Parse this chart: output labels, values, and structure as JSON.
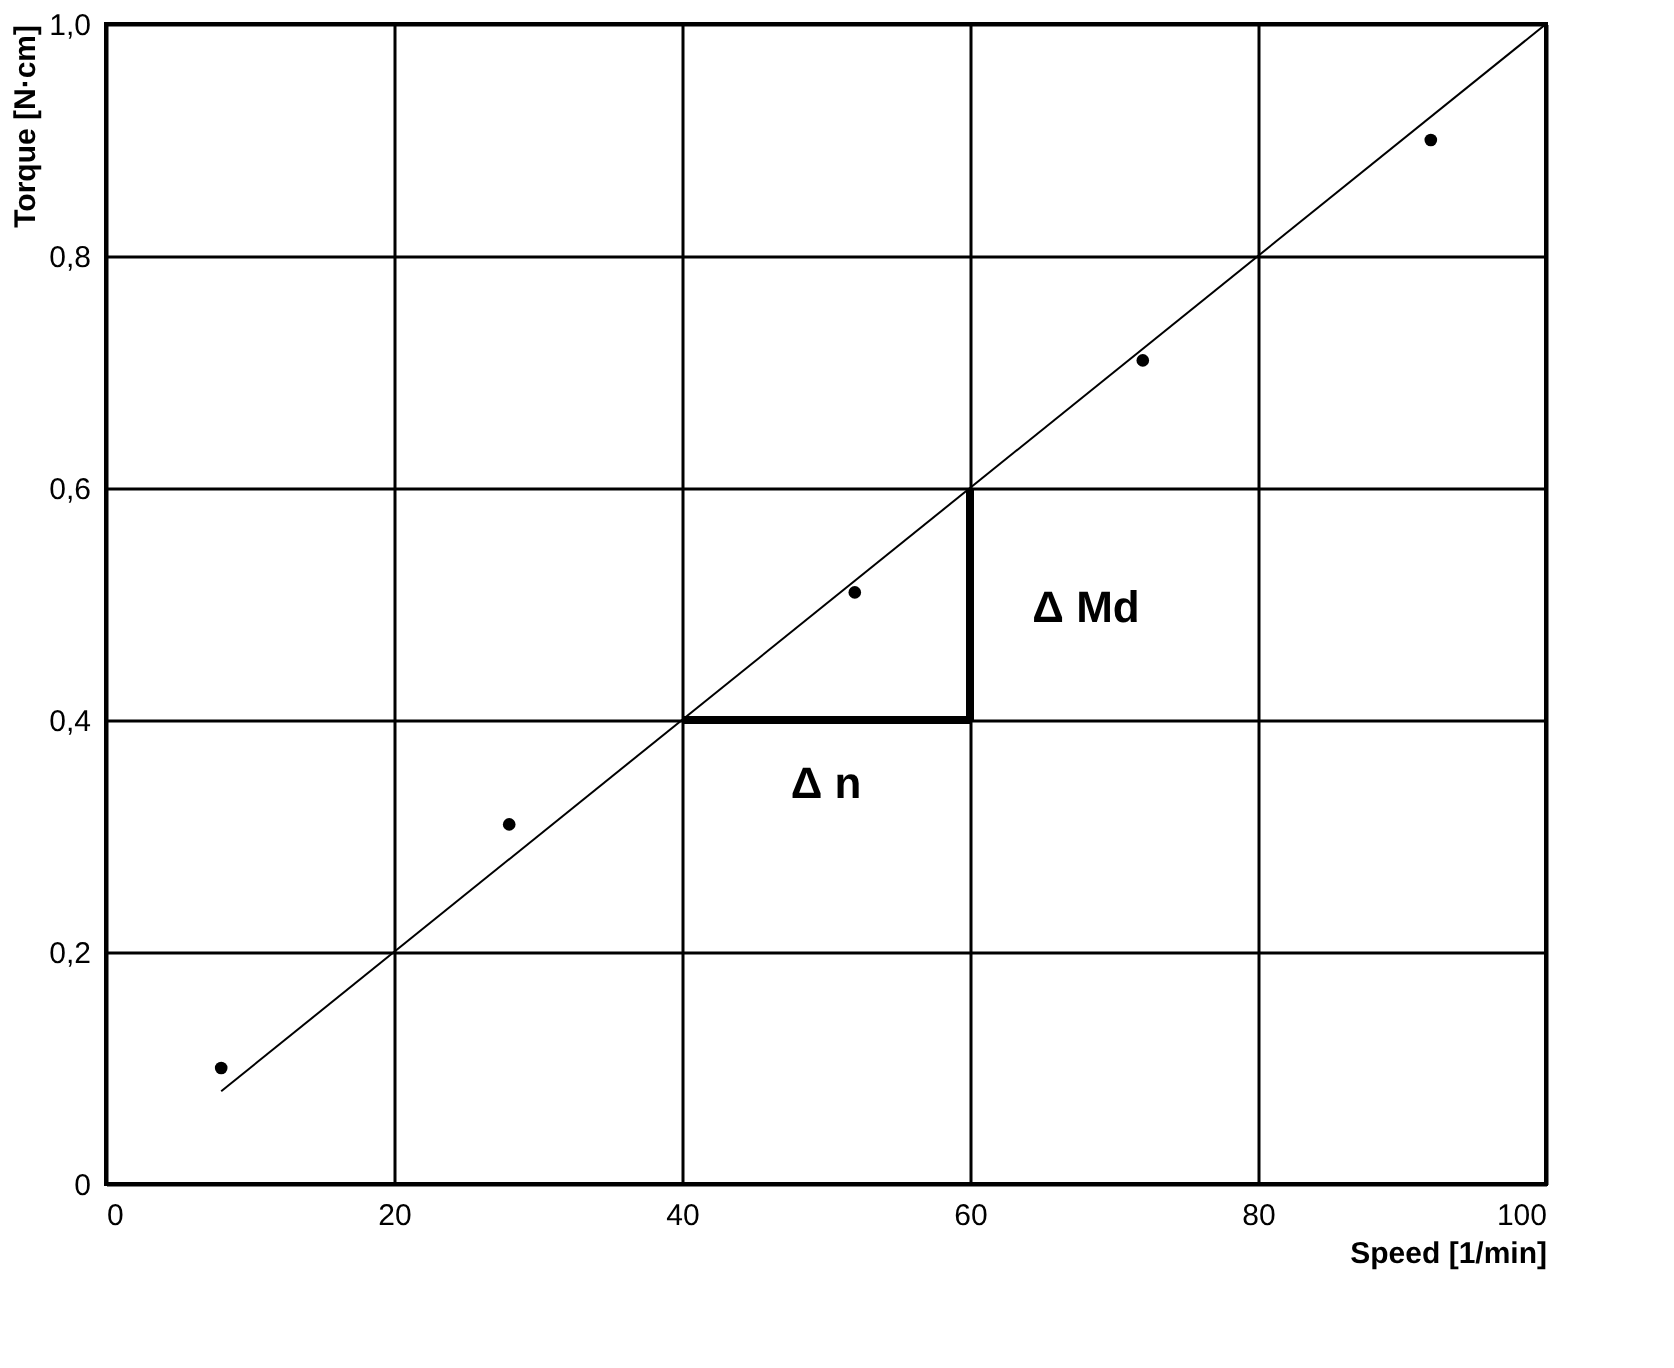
{
  "chart_data": {
    "type": "scatter",
    "xlabel": "Speed [1/min]",
    "ylabel": "Torque [N·cm]",
    "xlim": [
      0,
      100
    ],
    "xticks": [
      0,
      20,
      40,
      60,
      80,
      100
    ],
    "ylim": [
      0,
      1
    ],
    "yticks": [
      {
        "value": 0,
        "label": "0"
      },
      {
        "value": 0.2,
        "label": "0,2"
      },
      {
        "value": 0.4,
        "label": "0,4"
      },
      {
        "value": 0.6,
        "label": "0,6"
      },
      {
        "value": 0.8,
        "label": "0,8"
      },
      {
        "value": 1,
        "label": "1,0"
      }
    ],
    "grid": true,
    "series": [
      {
        "color": "#000000",
        "marker": "circle",
        "x": [
          8,
          28,
          52,
          72,
          92
        ],
        "values": [
          0.1,
          0.31,
          0.51,
          0.71,
          0.9
        ]
      },
      {
        "type": "line",
        "color": "#000000",
        "x": [
          8,
          100
        ],
        "values": [
          0.08,
          1.0
        ]
      },
      {
        "type": "line",
        "color": "#000000",
        "x": [
          40,
          60
        ],
        "values": [
          0.4,
          0.4
        ]
      },
      {
        "type": "line",
        "color": "#000000",
        "x": [
          60,
          60
        ],
        "values": [
          0.4,
          0.6
        ]
      }
    ],
    "annotations": [
      "Δ n",
      "Δ Md"
    ]
  }
}
